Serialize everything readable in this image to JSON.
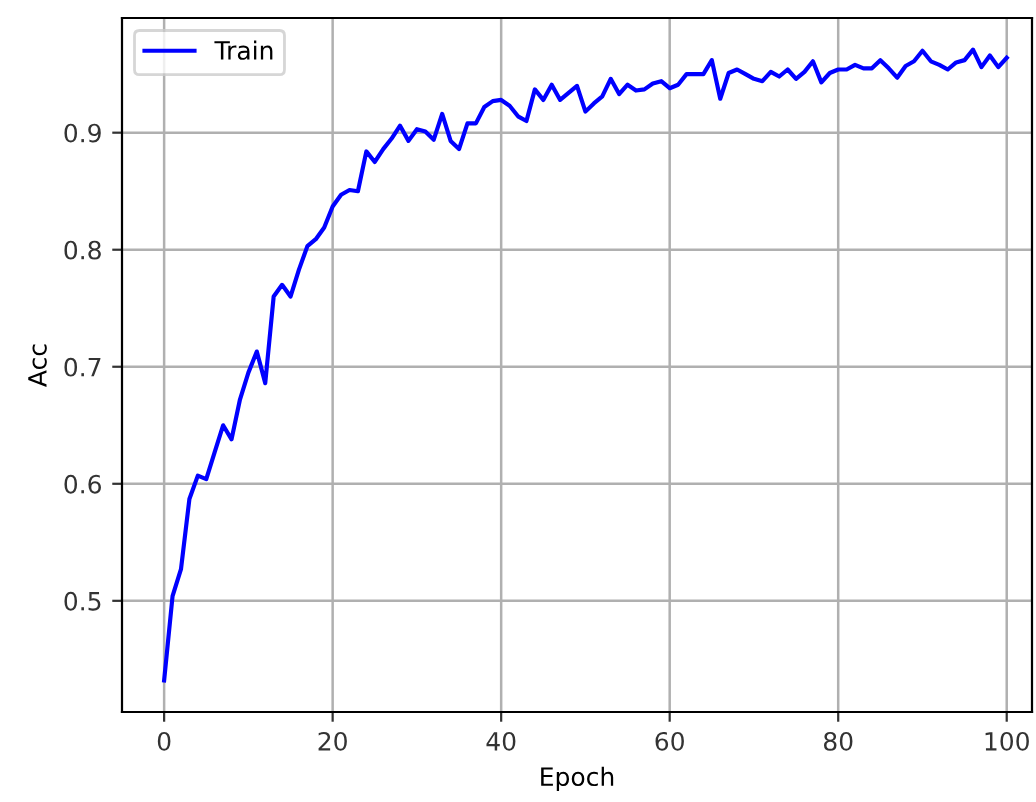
{
  "chart_data": {
    "type": "line",
    "xlabel": "Epoch",
    "ylabel": "Acc",
    "x": [
      0,
      1,
      2,
      3,
      4,
      5,
      6,
      7,
      8,
      9,
      10,
      11,
      12,
      13,
      14,
      15,
      16,
      17,
      18,
      19,
      20,
      21,
      22,
      23,
      24,
      25,
      26,
      27,
      28,
      29,
      30,
      31,
      32,
      33,
      34,
      35,
      36,
      37,
      38,
      39,
      40,
      41,
      42,
      43,
      44,
      45,
      46,
      47,
      48,
      49,
      50,
      51,
      52,
      53,
      54,
      55,
      56,
      57,
      58,
      59,
      60,
      61,
      62,
      63,
      64,
      65,
      66,
      67,
      68,
      69,
      70,
      71,
      72,
      73,
      74,
      75,
      76,
      77,
      78,
      79,
      80,
      81,
      82,
      83,
      84,
      85,
      86,
      87,
      88,
      89,
      90,
      91,
      92,
      93,
      94,
      95,
      96,
      97,
      98,
      99,
      100
    ],
    "series": [
      {
        "name": "Train",
        "color": "#0000ff",
        "values": [
          0.432,
          0.504,
          0.527,
          0.587,
          0.607,
          0.604,
          0.627,
          0.65,
          0.638,
          0.672,
          0.695,
          0.713,
          0.686,
          0.76,
          0.77,
          0.76,
          0.783,
          0.803,
          0.809,
          0.819,
          0.837,
          0.847,
          0.851,
          0.85,
          0.884,
          0.875,
          0.886,
          0.895,
          0.906,
          0.893,
          0.903,
          0.901,
          0.894,
          0.916,
          0.893,
          0.886,
          0.908,
          0.908,
          0.922,
          0.927,
          0.928,
          0.923,
          0.914,
          0.91,
          0.937,
          0.928,
          0.941,
          0.928,
          0.934,
          0.94,
          0.918,
          0.925,
          0.931,
          0.946,
          0.933,
          0.941,
          0.936,
          0.937,
          0.942,
          0.944,
          0.938,
          0.941,
          0.95,
          0.95,
          0.95,
          0.962,
          0.929,
          0.951,
          0.954,
          0.95,
          0.946,
          0.944,
          0.952,
          0.948,
          0.954,
          0.946,
          0.952,
          0.961,
          0.943,
          0.951,
          0.954,
          0.954,
          0.958,
          0.955,
          0.955,
          0.962,
          0.955,
          0.947,
          0.957,
          0.961,
          0.97,
          0.961,
          0.958,
          0.954,
          0.96,
          0.962,
          0.971,
          0.956,
          0.966,
          0.956,
          0.964
        ]
      }
    ],
    "xlim": [
      -5,
      103
    ],
    "ylim": [
      0.405,
      0.998
    ],
    "xticks": [
      0,
      20,
      40,
      60,
      80,
      100
    ],
    "yticks": [
      0.5,
      0.6,
      0.7,
      0.8,
      0.9
    ],
    "grid": true,
    "legend": "top left",
    "marker": "none",
    "line_style": "solid"
  }
}
